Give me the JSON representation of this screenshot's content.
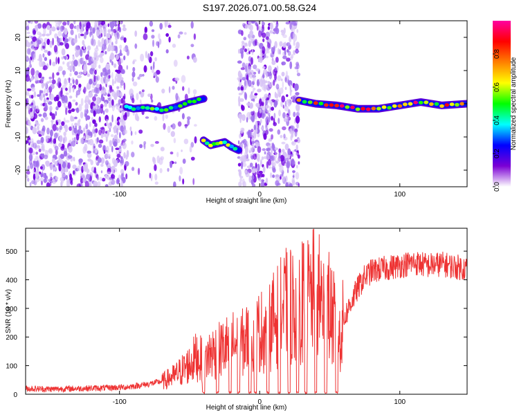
{
  "title": "S197.2026.071.00.58.G24",
  "chart_data": [
    {
      "type": "heatmap",
      "title": "",
      "xlabel": "Height of straight line (km)",
      "ylabel": "Frequency (Hz)",
      "xlim": [
        -167,
        148
      ],
      "ylim": [
        -25,
        25
      ],
      "xticks": [
        -100,
        0,
        100
      ],
      "yticks": [
        -20,
        -10,
        0,
        10,
        20
      ],
      "colorbar": {
        "label": "Normalized spectral amplitude",
        "range": [
          0,
          1
        ],
        "ticks": [
          "0.0",
          "0.2",
          "0.4",
          "0.6",
          "0.8"
        ],
        "colors": [
          "#ffffff",
          "#7b00d4",
          "#0000ff",
          "#00ffff",
          "#00ff00",
          "#ffff00",
          "#ff8000",
          "#ff0000",
          "#ff00a0"
        ]
      },
      "noise_regions": [
        {
          "x": [
            -167,
            -95
          ],
          "y": [
            -25,
            25
          ],
          "density": "high"
        },
        {
          "x": [
            -95,
            -45
          ],
          "y": [
            -25,
            25
          ],
          "density": "low"
        },
        {
          "x": [
            -15,
            28
          ],
          "y": [
            -25,
            25
          ],
          "density": "high"
        },
        {
          "x": [
            28,
            148
          ],
          "y": [
            -25,
            25
          ],
          "density": "very low"
        }
      ],
      "ridges": [
        {
          "name": "ridge-1",
          "x": [
            -95,
            -90,
            -80,
            -70,
            -60,
            -50,
            -40
          ],
          "y": [
            -1,
            -1.5,
            -1.2,
            -2,
            -1,
            0.5,
            1.5
          ],
          "amp": 0.5
        },
        {
          "name": "ridge-2",
          "x": [
            -40,
            -35,
            -30,
            -25,
            -20,
            -15
          ],
          "y": [
            -11,
            -12.5,
            -12,
            -11.5,
            -13,
            -14
          ],
          "amp": 0.6
        },
        {
          "name": "ridge-3",
          "x": [
            28,
            40,
            55,
            70,
            85,
            100,
            115,
            130,
            148
          ],
          "y": [
            1,
            0,
            -0.5,
            -1.5,
            -1.5,
            -0.5,
            0.5,
            -0.5,
            0
          ],
          "amp": 0.85
        }
      ]
    },
    {
      "type": "line",
      "title": "",
      "xlabel": "Height of straight line (km)",
      "ylabel": "SNR (10 * v/v)",
      "xlim": [
        -167,
        148
      ],
      "ylim": [
        0,
        580
      ],
      "xticks": [
        -100,
        0,
        100
      ],
      "yticks": [
        0,
        100,
        200,
        300,
        400,
        500
      ],
      "series": [
        {
          "name": "SNR",
          "color": "#ee3333",
          "x": [
            -167,
            -150,
            -130,
            -110,
            -95,
            -80,
            -70,
            -60,
            -55,
            -50,
            -45,
            -40,
            -35,
            -30,
            -25,
            -20,
            -15,
            -10,
            -5,
            0,
            5,
            10,
            15,
            20,
            25,
            30,
            35,
            40,
            45,
            50,
            55,
            57,
            60,
            65,
            70,
            75,
            80,
            90,
            100,
            110,
            120,
            130,
            140,
            148
          ],
          "y": [
            20,
            18,
            20,
            22,
            25,
            35,
            45,
            70,
            90,
            110,
            140,
            120,
            150,
            160,
            170,
            190,
            175,
            200,
            210,
            230,
            240,
            270,
            300,
            330,
            320,
            340,
            350,
            370,
            340,
            310,
            240,
            220,
            260,
            320,
            370,
            410,
            430,
            440,
            450,
            460,
            450,
            455,
            445,
            440
          ],
          "dropouts": [
            -40,
            -30,
            -21,
            -15,
            -7,
            -3,
            6,
            14,
            21,
            27,
            33,
            40,
            47,
            55
          ]
        }
      ]
    }
  ]
}
